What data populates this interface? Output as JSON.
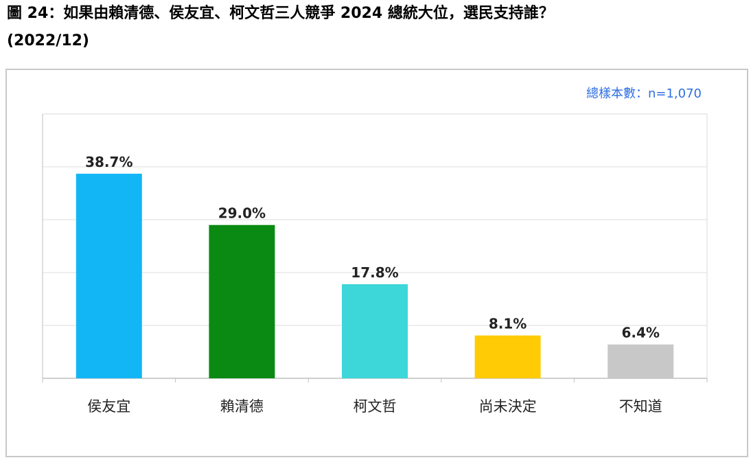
{
  "header": {
    "title_line1": "圖 24：如果由賴清德、侯友宜、柯文哲三人競爭 2024 總統大位，選民支持誰？",
    "title_line2": "(2022/12)"
  },
  "sample_note": "總樣本數：n=1,070",
  "chart_data": {
    "type": "bar",
    "title": "圖 24：如果由賴清德、侯友宜、柯文哲三人競爭 2024 總統大位，選民支持誰？",
    "subtitle": "(2022/12)",
    "categories": [
      "侯友宜",
      "賴清德",
      "柯文哲",
      "尚未決定",
      "不知道"
    ],
    "values": [
      38.7,
      29.0,
      17.8,
      8.1,
      6.4
    ],
    "value_labels": [
      "38.7%",
      "29.0%",
      "17.8%",
      "8.1%",
      "6.4%"
    ],
    "colors": [
      "#13b6f5",
      "#0a8a13",
      "#3dd6d9",
      "#ffcb05",
      "#c8c8c8"
    ],
    "ylim": [
      0,
      50
    ],
    "gridlines": [
      10,
      20,
      30,
      40
    ],
    "grid": true,
    "y_axis_labels_shown": false,
    "legend": "none"
  }
}
